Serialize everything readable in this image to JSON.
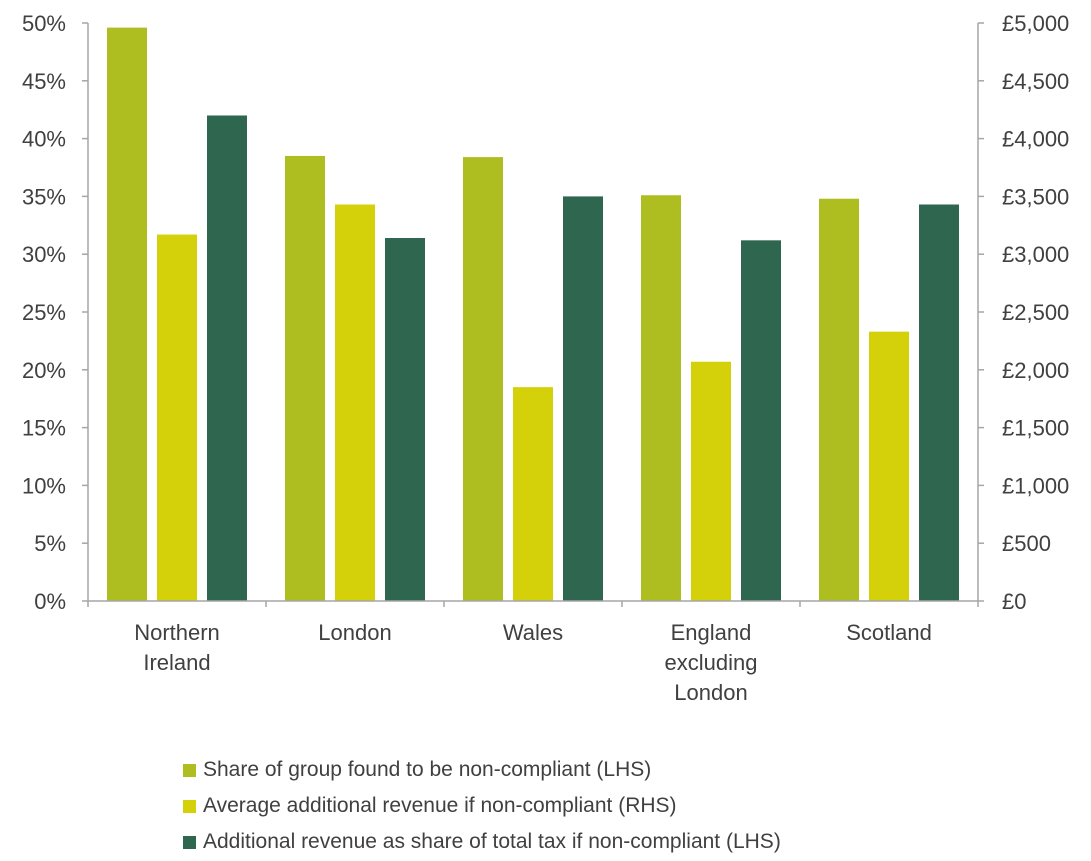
{
  "chart_data": {
    "type": "bar",
    "categories": [
      "Northern Ireland",
      "London",
      "Wales",
      "England excluding London",
      "Scotland"
    ],
    "category_lines": [
      [
        "Northern",
        "Ireland"
      ],
      [
        "London"
      ],
      [
        "Wales"
      ],
      [
        "England",
        "excluding",
        "London"
      ],
      [
        "Scotland"
      ]
    ],
    "series": [
      {
        "name": "Share of group found to be non-compliant (LHS)",
        "axis": "left",
        "color": "#aebd20",
        "values": [
          49.6,
          38.5,
          38.4,
          35.1,
          34.8
        ]
      },
      {
        "name": "Average additional revenue if non-compliant (RHS)",
        "axis": "right",
        "color": "#d4d00a",
        "values": [
          3170,
          3430,
          1850,
          2070,
          2330
        ]
      },
      {
        "name": "Additional revenue as share of total tax if non-compliant (LHS)",
        "axis": "left",
        "color": "#2e6650",
        "values": [
          42.0,
          31.4,
          35.0,
          31.2,
          34.3
        ]
      }
    ],
    "y_left": {
      "ylim": [
        0,
        50
      ],
      "ticks": [
        0,
        5,
        10,
        15,
        20,
        25,
        30,
        35,
        40,
        45,
        50
      ],
      "tick_labels": [
        "0%",
        "5%",
        "10%",
        "15%",
        "20%",
        "25%",
        "30%",
        "35%",
        "40%",
        "45%",
        "50%"
      ]
    },
    "y_right": {
      "ylim": [
        0,
        5000
      ],
      "ticks": [
        0,
        500,
        1000,
        1500,
        2000,
        2500,
        3000,
        3500,
        4000,
        4500,
        5000
      ],
      "tick_labels": [
        "£0",
        "£500",
        "£1,000",
        "£1,500",
        "£2,000",
        "£2,500",
        "£3,000",
        "£3,500",
        "£4,000",
        "£4,500",
        "£5,000"
      ]
    },
    "title": "",
    "xlabel": "",
    "grid": false,
    "legend_placement": "bottom"
  },
  "legend": [
    {
      "label": "Share of group found to be non-compliant (LHS)",
      "color": "#aebd20"
    },
    {
      "label": "Average additional revenue if non-compliant (RHS)",
      "color": "#d4d00a"
    },
    {
      "label": "Additional revenue as share of total tax if non-compliant (LHS)",
      "color": "#2e6650"
    }
  ]
}
